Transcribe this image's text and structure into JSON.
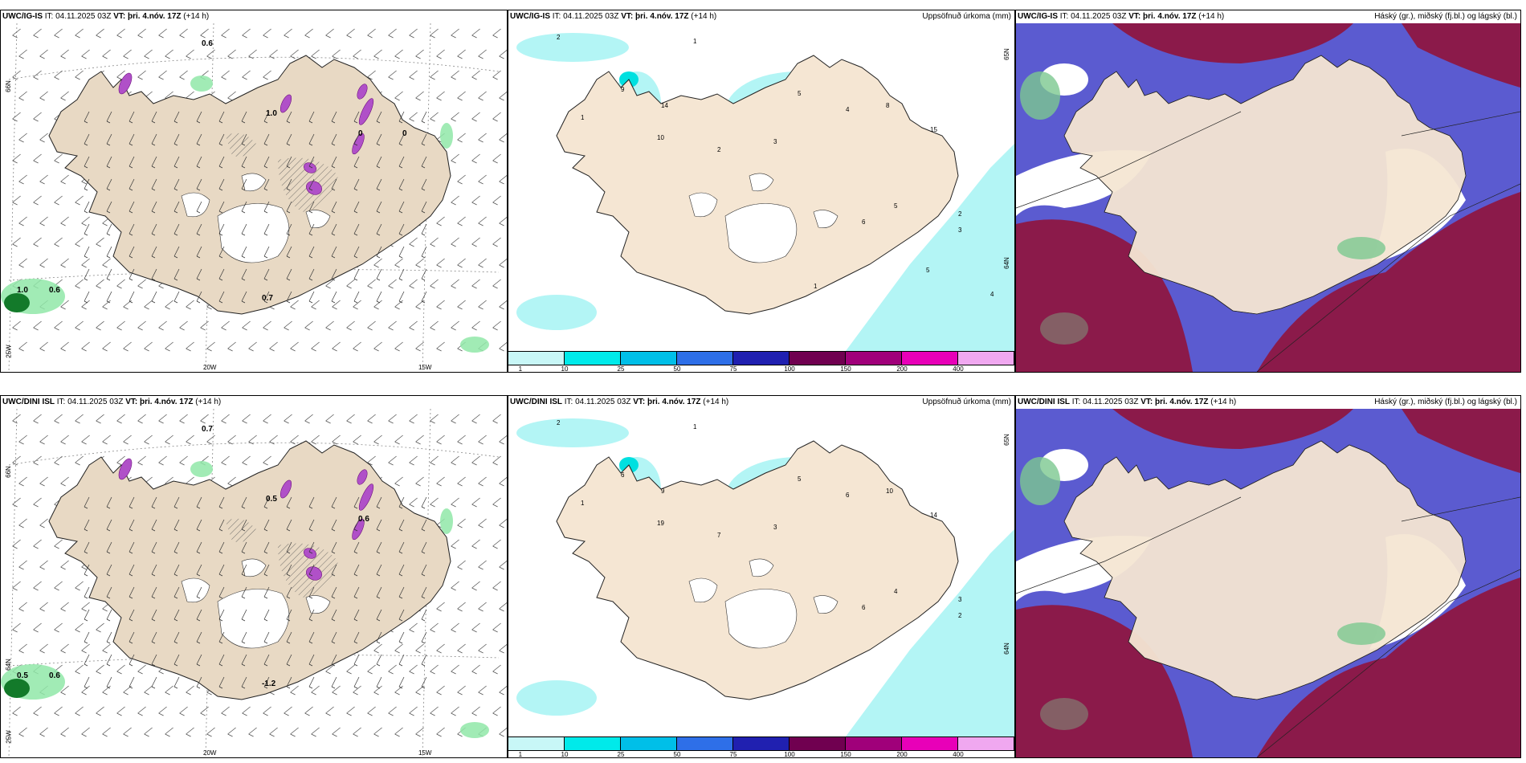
{
  "colors": {
    "land": "#f5e6d3",
    "land_dark": "#e8d9c4",
    "sea_cloud_high": "#8b1a4a",
    "cloud_mid": "#5b5bd0",
    "precip_light": "#b3f5f5",
    "precip_green": "#8fe0a0"
  },
  "panels": [
    {
      "model": "UWC/IG-IS",
      "it_label": "IT:",
      "it_value": "04.11.2025 03Z",
      "vt_label": "VT:",
      "vt_value": "þri. 4.nóv. 17Z",
      "lead": "(+14 h)",
      "right": "",
      "type": "wind"
    },
    {
      "model": "UWC/IG-IS",
      "it_label": "IT:",
      "it_value": "04.11.2025 03Z",
      "vt_label": "VT:",
      "vt_value": "þri. 4.nóv. 17Z",
      "lead": "(+14 h)",
      "right": "Uppsöfnuð úrkoma (mm)",
      "type": "precip"
    },
    {
      "model": "UWC/IG-IS",
      "it_label": "IT:",
      "it_value": "04.11.2025 03Z",
      "vt_label": "VT:",
      "vt_value": "þri. 4.nóv. 17Z",
      "lead": "(+14 h)",
      "right": "Háský (gr.), miðský (fj.bl.) og lágský (bl.)",
      "type": "cloud"
    },
    {
      "model": "UWC/DINI ISL",
      "it_label": "IT:",
      "it_value": "04.11.2025 03Z",
      "vt_label": "VT:",
      "vt_value": "þri. 4.nóv. 17Z",
      "lead": "(+14 h)",
      "right": "",
      "type": "wind"
    },
    {
      "model": "UWC/DINI ISL",
      "it_label": "IT:",
      "it_value": "04.11.2025 03Z",
      "vt_label": "VT:",
      "vt_value": "þri. 4.nóv. 17Z",
      "lead": "(+14 h)",
      "right": "Uppsöfnuð úrkoma (mm)",
      "type": "precip"
    },
    {
      "model": "UWC/DINI ISL",
      "it_label": "IT:",
      "it_value": "04.11.2025 03Z",
      "vt_label": "VT:",
      "vt_value": "þri. 4.nóv. 17Z",
      "lead": "(+14 h)",
      "right": "Háský (gr.), miðský (fj.bl.) og lágský (bl.)",
      "type": "cloud"
    }
  ],
  "legend": {
    "ticks": [
      "1",
      "10",
      "25",
      "50",
      "75",
      "100",
      "150",
      "200",
      "400"
    ],
    "colors": [
      "#c8f7f7",
      "#00eaea",
      "#00bfe8",
      "#2e6fe8",
      "#2020b0",
      "#700050",
      "#a0007a",
      "#e800b8",
      "#f0a8f0"
    ]
  },
  "axis_labels": {
    "lat_66": "66N",
    "lat_64": "64N",
    "lon_25": "25W",
    "lon_20": "20W",
    "lon_15": "15W",
    "lat_65": "65N"
  },
  "wind_labels_top": [
    "0.6",
    "1.0",
    "0.6",
    "0.7",
    "1.0",
    "0",
    "0"
  ],
  "wind_labels_bottom": [
    "0.7",
    "0.5",
    "0.6",
    "-1.2",
    "0.5",
    "0.6"
  ],
  "precip_labels_top": [
    "2",
    "1",
    "9",
    "14",
    "10",
    "1",
    "2",
    "3",
    "5",
    "4",
    "8",
    "15",
    "5",
    "6",
    "2",
    "3",
    "5",
    "4",
    "1"
  ],
  "precip_labels_bottom": [
    "2",
    "1",
    "6",
    "9",
    "19",
    "1",
    "7",
    "3",
    "5",
    "6",
    "10",
    "14",
    "4",
    "6",
    "3",
    "2"
  ]
}
